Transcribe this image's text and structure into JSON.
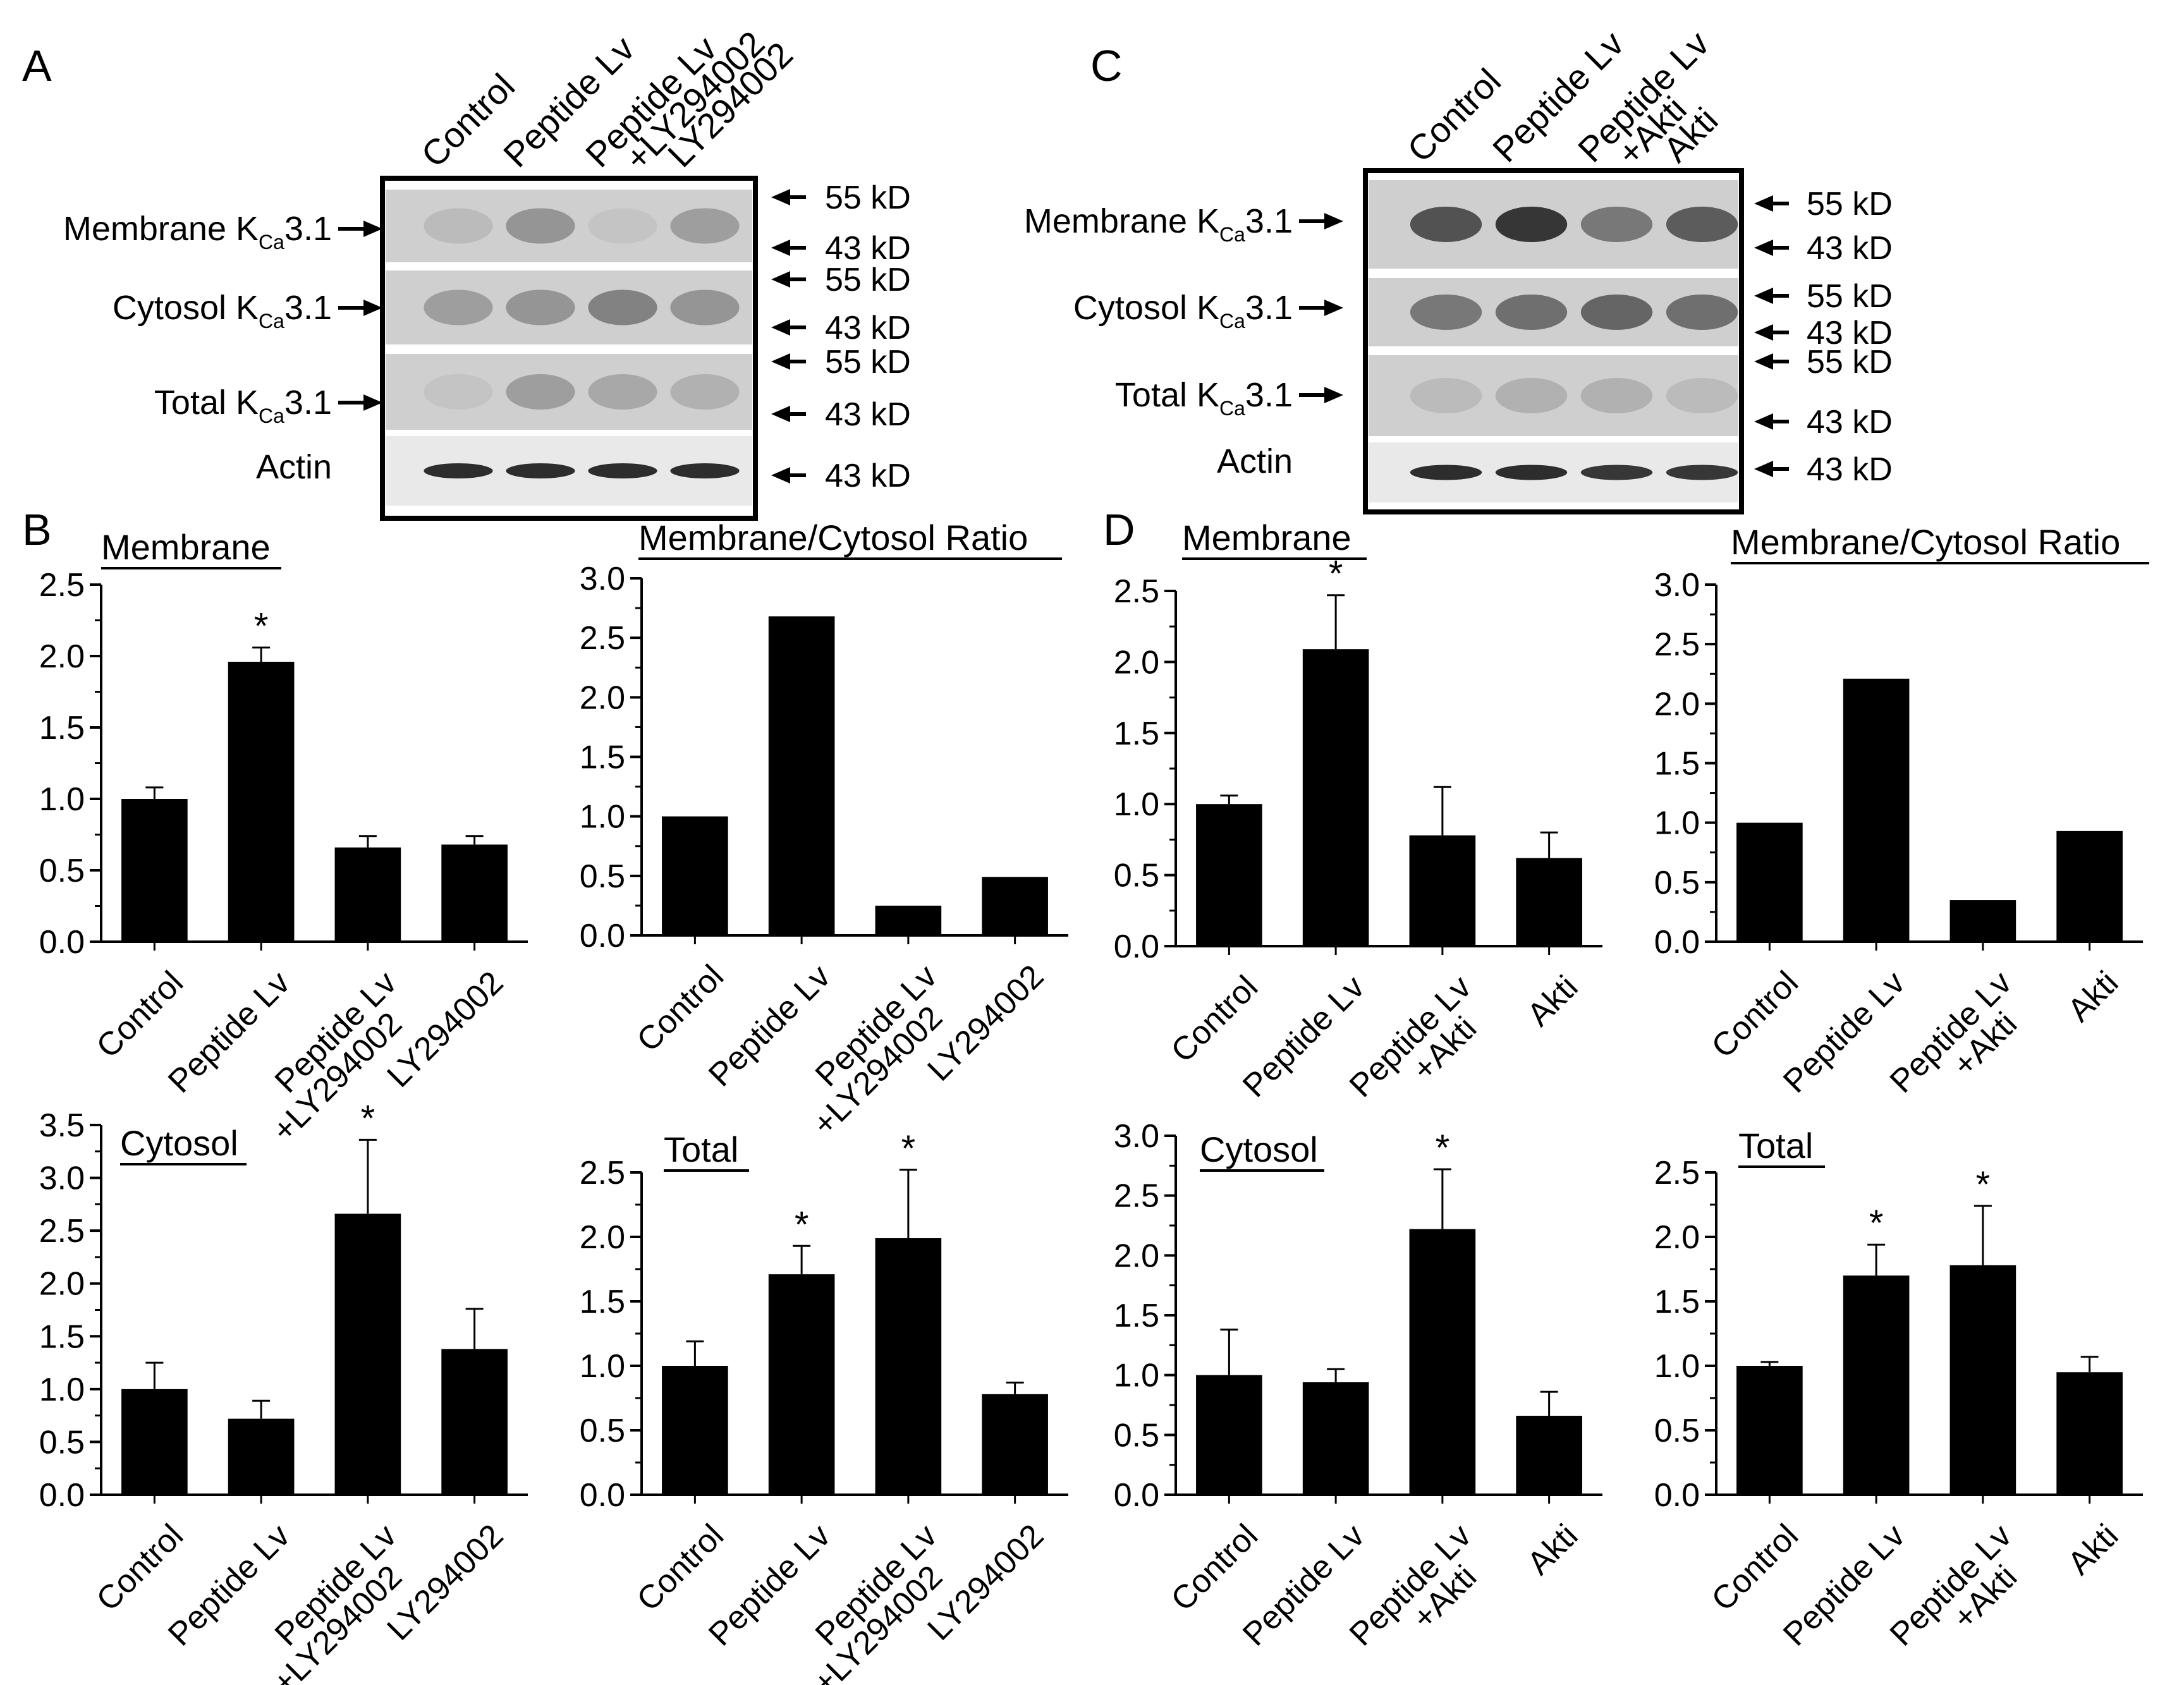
{
  "panels": {
    "A": {
      "letter": "A"
    },
    "B": {
      "letter": "B"
    },
    "C": {
      "letter": "C"
    },
    "D": {
      "letter": "D"
    }
  },
  "blots": [
    {
      "id": "A",
      "lanes": [
        {
          "text": "Control",
          "lines": [
            "Control"
          ]
        },
        {
          "text": "Peptide Lv",
          "lines": [
            "Peptide Lv"
          ]
        },
        {
          "text": "Peptide Lv +LY294002",
          "lines": [
            "Peptide Lv",
            "+LY294002"
          ]
        },
        {
          "text": "LY294002",
          "lines": [
            "LY294002"
          ]
        }
      ],
      "rows": [
        {
          "pre": "Membrane K",
          "sub": "Ca",
          "post": "3.1"
        },
        {
          "pre": "Cytosol K",
          "sub": "Ca",
          "post": "3.1"
        },
        {
          "pre": "Total K",
          "sub": "Ca",
          "post": "3.1"
        },
        {
          "pre": "Actin",
          "sub": "",
          "post": ""
        }
      ],
      "markers": [
        "55 kD",
        "43 kD",
        "55 kD",
        "43 kD",
        "55 kD",
        "43 kD",
        "43 kD"
      ],
      "band_intensity": [
        [
          0.15,
          0.35,
          0.1,
          0.3
        ],
        [
          0.3,
          0.35,
          0.45,
          0.35
        ],
        [
          0.1,
          0.3,
          0.25,
          0.2
        ],
        [
          0.9,
          0.9,
          0.9,
          0.9
        ]
      ]
    },
    {
      "id": "C",
      "lanes": [
        {
          "text": "Control",
          "lines": [
            "Control"
          ]
        },
        {
          "text": "Peptide Lv",
          "lines": [
            "Peptide Lv"
          ]
        },
        {
          "text": "Peptide Lv +Akti",
          "lines": [
            "Peptide Lv",
            "+Akti"
          ]
        },
        {
          "text": "Akti",
          "lines": [
            "Akti"
          ]
        }
      ],
      "rows": [
        {
          "pre": "Membrane K",
          "sub": "Ca",
          "post": "3.1"
        },
        {
          "pre": "Cytosol K",
          "sub": "Ca",
          "post": "3.1"
        },
        {
          "pre": "Total K",
          "sub": "Ca",
          "post": "3.1"
        },
        {
          "pre": "Actin",
          "sub": "",
          "post": ""
        }
      ],
      "markers": [
        "55 kD",
        "43 kD",
        "55 kD",
        "43 kD",
        "55 kD",
        "43 kD",
        "43 kD"
      ],
      "band_intensity": [
        [
          0.7,
          0.85,
          0.5,
          0.65
        ],
        [
          0.5,
          0.55,
          0.6,
          0.55
        ],
        [
          0.15,
          0.2,
          0.2,
          0.15
        ],
        [
          0.9,
          0.9,
          0.85,
          0.85
        ]
      ]
    }
  ],
  "chart_data": [
    {
      "id": "B-membrane",
      "type": "bar",
      "title": "Membrane",
      "categories": [
        "Control",
        "Peptide Lv",
        "Peptide Lv +LY294002",
        "LY294002"
      ],
      "category_lines": [
        [
          "Control"
        ],
        [
          "Peptide Lv"
        ],
        [
          "Peptide Lv",
          "+LY294002"
        ],
        [
          "LY294002"
        ]
      ],
      "values": [
        1.0,
        1.96,
        0.66,
        0.68
      ],
      "errors": [
        0.08,
        0.1,
        0.08,
        0.06
      ],
      "significant": [
        false,
        true,
        false,
        false
      ],
      "ylim": [
        0,
        2.5
      ],
      "yticks": [
        "0.0",
        "0.5",
        "1.0",
        "1.5",
        "2.0",
        "2.5"
      ],
      "xlabel": "",
      "ylabel": ""
    },
    {
      "id": "B-ratio",
      "type": "bar",
      "title": "Membrane/Cytosol Ratio",
      "categories": [
        "Control",
        "Peptide Lv",
        "Peptide Lv +LY294002",
        "LY294002"
      ],
      "category_lines": [
        [
          "Control"
        ],
        [
          "Peptide Lv"
        ],
        [
          "Peptide Lv",
          "+LY294002"
        ],
        [
          "LY294002"
        ]
      ],
      "values": [
        1.0,
        2.68,
        0.25,
        0.49
      ],
      "errors": [
        0,
        0,
        0,
        0
      ],
      "significant": [
        false,
        false,
        false,
        false
      ],
      "ylim": [
        0,
        3.0
      ],
      "yticks": [
        "0.0",
        "0.5",
        "1.0",
        "1.5",
        "2.0",
        "2.5",
        "3.0"
      ],
      "xlabel": "",
      "ylabel": ""
    },
    {
      "id": "B-cytosol",
      "type": "bar",
      "title": "Cytosol",
      "categories": [
        "Control",
        "Peptide Lv",
        "Peptide Lv +LY294002",
        "LY294002"
      ],
      "category_lines": [
        [
          "Control"
        ],
        [
          "Peptide Lv"
        ],
        [
          "Peptide Lv",
          "+LY294002"
        ],
        [
          "LY294002"
        ]
      ],
      "values": [
        1.0,
        0.72,
        2.66,
        1.38
      ],
      "errors": [
        0.25,
        0.17,
        0.7,
        0.38
      ],
      "significant": [
        false,
        false,
        true,
        false
      ],
      "ylim": [
        0,
        3.5
      ],
      "yticks": [
        "0.0",
        "0.5",
        "1.0",
        "1.5",
        "2.0",
        "2.5",
        "3.0",
        "3.5"
      ],
      "xlabel": "",
      "ylabel": ""
    },
    {
      "id": "B-total",
      "type": "bar",
      "title": "Total",
      "categories": [
        "Control",
        "Peptide Lv",
        "Peptide Lv +LY294002",
        "LY294002"
      ],
      "category_lines": [
        [
          "Control"
        ],
        [
          "Peptide Lv"
        ],
        [
          "Peptide Lv",
          "+LY294002"
        ],
        [
          "LY294002"
        ]
      ],
      "values": [
        1.0,
        1.71,
        1.99,
        0.78
      ],
      "errors": [
        0.19,
        0.22,
        0.53,
        0.09
      ],
      "significant": [
        false,
        true,
        true,
        false
      ],
      "ylim": [
        0,
        2.5
      ],
      "yticks": [
        "0.0",
        "0.5",
        "1.0",
        "1.5",
        "2.0",
        "2.5"
      ],
      "xlabel": "",
      "ylabel": ""
    },
    {
      "id": "D-membrane",
      "type": "bar",
      "title": "Membrane",
      "categories": [
        "Control",
        "Peptide Lv",
        "Peptide Lv +Akti",
        "Akti"
      ],
      "category_lines": [
        [
          "Control"
        ],
        [
          "Peptide Lv"
        ],
        [
          "Peptide Lv",
          "+Akti"
        ],
        [
          "Akti"
        ]
      ],
      "values": [
        1.0,
        2.09,
        0.78,
        0.62
      ],
      "errors": [
        0.06,
        0.38,
        0.34,
        0.18
      ],
      "significant": [
        false,
        true,
        false,
        false
      ],
      "ylim": [
        0,
        2.5
      ],
      "yticks": [
        "0.0",
        "0.5",
        "1.0",
        "1.5",
        "2.0",
        "2.5"
      ],
      "xlabel": "",
      "ylabel": ""
    },
    {
      "id": "D-ratio",
      "type": "bar",
      "title": "Membrane/Cytosol Ratio",
      "categories": [
        "Control",
        "Peptide Lv",
        "Peptide Lv +Akti",
        "Akti"
      ],
      "category_lines": [
        [
          "Control"
        ],
        [
          "Peptide Lv"
        ],
        [
          "Peptide Lv",
          "+Akti"
        ],
        [
          "Akti"
        ]
      ],
      "values": [
        1.0,
        2.21,
        0.35,
        0.93
      ],
      "errors": [
        0,
        0,
        0,
        0
      ],
      "significant": [
        false,
        false,
        false,
        false
      ],
      "ylim": [
        0,
        3.0
      ],
      "yticks": [
        "0.0",
        "0.5",
        "1.0",
        "1.5",
        "2.0",
        "2.5",
        "3.0"
      ],
      "xlabel": "",
      "ylabel": ""
    },
    {
      "id": "D-cytosol",
      "type": "bar",
      "title": "Cytosol",
      "categories": [
        "Control",
        "Peptide Lv",
        "Peptide Lv +Akti",
        "Akti"
      ],
      "category_lines": [
        [
          "Control"
        ],
        [
          "Peptide Lv"
        ],
        [
          "Peptide Lv",
          "+Akti"
        ],
        [
          "Akti"
        ]
      ],
      "values": [
        1.0,
        0.94,
        2.22,
        0.66
      ],
      "errors": [
        0.38,
        0.11,
        0.5,
        0.2
      ],
      "significant": [
        false,
        false,
        true,
        false
      ],
      "ylim": [
        0,
        3.0
      ],
      "yticks": [
        "0.0",
        "0.5",
        "1.0",
        "1.5",
        "2.0",
        "2.5",
        "3.0"
      ],
      "xlabel": "",
      "ylabel": ""
    },
    {
      "id": "D-total",
      "type": "bar",
      "title": "Total",
      "categories": [
        "Control",
        "Peptide Lv",
        "Peptide Lv +Akti",
        "Akti"
      ],
      "category_lines": [
        [
          "Control"
        ],
        [
          "Peptide Lv"
        ],
        [
          "Peptide Lv",
          "+Akti"
        ],
        [
          "Akti"
        ]
      ],
      "values": [
        1.0,
        1.7,
        1.78,
        0.95
      ],
      "errors": [
        0.03,
        0.24,
        0.46,
        0.12
      ],
      "significant": [
        false,
        true,
        true,
        false
      ],
      "ylim": [
        0,
        2.5
      ],
      "yticks": [
        "0.0",
        "0.5",
        "1.0",
        "1.5",
        "2.0",
        "2.5"
      ],
      "xlabel": "",
      "ylabel": ""
    }
  ],
  "significance_marker": "*"
}
